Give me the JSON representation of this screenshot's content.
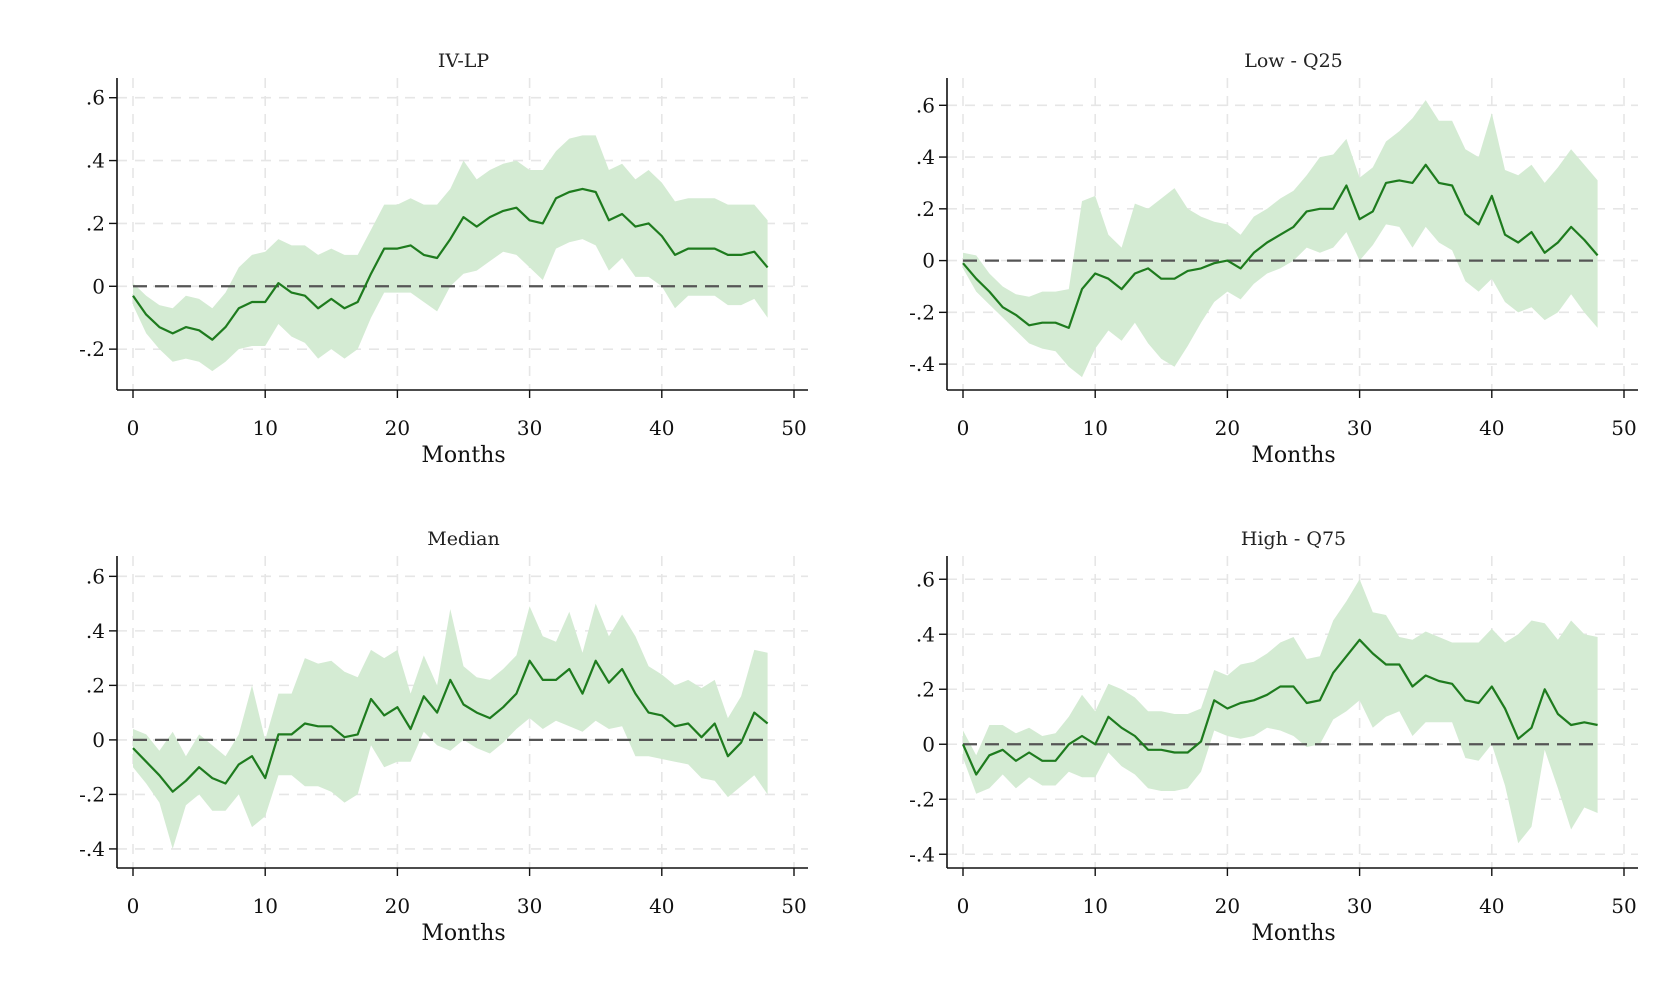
{
  "chart_data": [
    {
      "type": "line",
      "title": "IV-LP",
      "xlabel": "Months",
      "ylabel": "",
      "xlim": [
        0,
        50
      ],
      "ylim": [
        -0.33,
        0.65
      ],
      "xticks": [
        0,
        10,
        20,
        30,
        40,
        50
      ],
      "xtick_labels": [
        "0",
        "10",
        "20",
        "30",
        "40",
        "50"
      ],
      "yticks": [
        -0.2,
        0,
        0.2,
        0.4,
        0.6
      ],
      "ytick_labels": [
        "-.2",
        "0",
        ".2",
        ".4",
        ".6"
      ],
      "grid": true,
      "legend": "none",
      "reference_line": 0,
      "colors": {
        "line": "#1e7b1e",
        "band": "#d4ebd3",
        "reference": "#555555",
        "grid": "#e6e6e6"
      },
      "x": [
        0,
        1,
        2,
        3,
        4,
        5,
        6,
        7,
        8,
        9,
        10,
        11,
        12,
        13,
        14,
        15,
        16,
        17,
        18,
        19,
        20,
        21,
        22,
        23,
        24,
        25,
        26,
        27,
        28,
        29,
        30,
        31,
        32,
        33,
        34,
        35,
        36,
        37,
        38,
        39,
        40,
        41,
        42,
        43,
        44,
        45,
        46,
        47,
        48
      ],
      "series": [
        {
          "values": [
            -0.03,
            -0.09,
            -0.13,
            -0.15,
            -0.13,
            -0.14,
            -0.17,
            -0.13,
            -0.07,
            -0.05,
            -0.05,
            0.01,
            -0.02,
            -0.03,
            -0.07,
            -0.04,
            -0.07,
            -0.05,
            0.04,
            0.12,
            0.12,
            0.13,
            0.1,
            0.09,
            0.15,
            0.22,
            0.19,
            0.22,
            0.24,
            0.25,
            0.21,
            0.2,
            0.28,
            0.3,
            0.31,
            0.3,
            0.21,
            0.23,
            0.19,
            0.2,
            0.16,
            0.1,
            0.12,
            0.12,
            0.12,
            0.1,
            0.1,
            0.11,
            0.06
          ],
          "lower": [
            -0.06,
            -0.15,
            -0.2,
            -0.24,
            -0.23,
            -0.24,
            -0.27,
            -0.24,
            -0.2,
            -0.19,
            -0.19,
            -0.12,
            -0.16,
            -0.18,
            -0.23,
            -0.2,
            -0.23,
            -0.2,
            -0.1,
            -0.02,
            -0.02,
            -0.02,
            -0.05,
            -0.08,
            0.0,
            0.04,
            0.05,
            0.08,
            0.11,
            0.1,
            0.06,
            0.02,
            0.12,
            0.14,
            0.15,
            0.13,
            0.05,
            0.09,
            0.03,
            0.03,
            0.0,
            -0.07,
            -0.03,
            -0.03,
            -0.03,
            -0.06,
            -0.06,
            -0.04,
            -0.1
          ],
          "upper": [
            0.01,
            -0.03,
            -0.06,
            -0.07,
            -0.03,
            -0.04,
            -0.07,
            -0.02,
            0.06,
            0.1,
            0.11,
            0.15,
            0.13,
            0.13,
            0.1,
            0.12,
            0.1,
            0.1,
            0.18,
            0.26,
            0.26,
            0.28,
            0.26,
            0.26,
            0.31,
            0.4,
            0.34,
            0.37,
            0.39,
            0.4,
            0.37,
            0.37,
            0.43,
            0.47,
            0.48,
            0.48,
            0.37,
            0.39,
            0.34,
            0.37,
            0.33,
            0.27,
            0.28,
            0.28,
            0.28,
            0.26,
            0.26,
            0.26,
            0.21
          ]
        }
      ]
    },
    {
      "type": "line",
      "title": "Low - Q25",
      "xlabel": "Months",
      "ylabel": "",
      "xlim": [
        0,
        50
      ],
      "ylim": [
        -0.5,
        0.69
      ],
      "xticks": [
        0,
        10,
        20,
        30,
        40,
        50
      ],
      "xtick_labels": [
        "0",
        "10",
        "20",
        "30",
        "40",
        "50"
      ],
      "yticks": [
        -0.4,
        -0.2,
        0,
        0.2,
        0.4,
        0.6
      ],
      "ytick_labels": [
        "-.4",
        "-.2",
        "0",
        ".2",
        ".4",
        ".6"
      ],
      "grid": true,
      "legend": "none",
      "reference_line": 0,
      "colors": {
        "line": "#1e7b1e",
        "band": "#d4ebd3",
        "reference": "#555555",
        "grid": "#e6e6e6"
      },
      "x": [
        0,
        1,
        2,
        3,
        4,
        5,
        6,
        7,
        8,
        9,
        10,
        11,
        12,
        13,
        14,
        15,
        16,
        17,
        18,
        19,
        20,
        21,
        22,
        23,
        24,
        25,
        26,
        27,
        28,
        29,
        30,
        31,
        32,
        33,
        34,
        35,
        36,
        37,
        38,
        39,
        40,
        41,
        42,
        43,
        44,
        45,
        46,
        47,
        48
      ],
      "series": [
        {
          "values": [
            -0.01,
            -0.07,
            -0.12,
            -0.18,
            -0.21,
            -0.25,
            -0.24,
            -0.24,
            -0.26,
            -0.11,
            -0.05,
            -0.07,
            -0.11,
            -0.05,
            -0.03,
            -0.07,
            -0.07,
            -0.04,
            -0.03,
            -0.01,
            0.0,
            -0.03,
            0.03,
            0.07,
            0.1,
            0.13,
            0.19,
            0.2,
            0.2,
            0.29,
            0.16,
            0.19,
            0.3,
            0.31,
            0.3,
            0.37,
            0.3,
            0.29,
            0.18,
            0.14,
            0.25,
            0.1,
            0.07,
            0.11,
            0.03,
            0.07,
            0.13,
            0.08,
            0.02
          ],
          "lower": [
            -0.03,
            -0.12,
            -0.17,
            -0.22,
            -0.27,
            -0.32,
            -0.34,
            -0.35,
            -0.41,
            -0.45,
            -0.34,
            -0.27,
            -0.31,
            -0.24,
            -0.32,
            -0.38,
            -0.41,
            -0.33,
            -0.24,
            -0.16,
            -0.12,
            -0.15,
            -0.09,
            -0.05,
            -0.03,
            0.0,
            0.05,
            0.03,
            0.05,
            0.11,
            0.0,
            0.06,
            0.14,
            0.13,
            0.05,
            0.13,
            0.07,
            0.04,
            -0.08,
            -0.12,
            -0.07,
            -0.16,
            -0.2,
            -0.18,
            -0.23,
            -0.2,
            -0.13,
            -0.2,
            -0.26
          ],
          "upper": [
            0.03,
            0.02,
            -0.05,
            -0.1,
            -0.13,
            -0.14,
            -0.12,
            -0.12,
            -0.11,
            0.23,
            0.25,
            0.1,
            0.05,
            0.22,
            0.2,
            0.24,
            0.28,
            0.2,
            0.17,
            0.15,
            0.14,
            0.1,
            0.17,
            0.2,
            0.24,
            0.27,
            0.33,
            0.4,
            0.41,
            0.47,
            0.32,
            0.36,
            0.46,
            0.5,
            0.55,
            0.62,
            0.54,
            0.54,
            0.43,
            0.4,
            0.57,
            0.35,
            0.33,
            0.37,
            0.3,
            0.36,
            0.43,
            0.37,
            0.31
          ]
        }
      ]
    },
    {
      "type": "line",
      "title": "Median",
      "xlabel": "Months",
      "ylabel": "",
      "xlim": [
        0,
        50
      ],
      "ylim": [
        -0.47,
        0.66
      ],
      "xticks": [
        0,
        10,
        20,
        30,
        40,
        50
      ],
      "xtick_labels": [
        "0",
        "10",
        "20",
        "30",
        "40",
        "50"
      ],
      "yticks": [
        -0.4,
        -0.2,
        0,
        0.2,
        0.4,
        0.6
      ],
      "ytick_labels": [
        "-.4",
        "-.2",
        "0",
        ".2",
        ".4",
        ".6"
      ],
      "grid": true,
      "legend": "none",
      "reference_line": 0,
      "colors": {
        "line": "#1e7b1e",
        "band": "#d4ebd3",
        "reference": "#555555",
        "grid": "#e6e6e6"
      },
      "x": [
        0,
        1,
        2,
        3,
        4,
        5,
        6,
        7,
        8,
        9,
        10,
        11,
        12,
        13,
        14,
        15,
        16,
        17,
        18,
        19,
        20,
        21,
        22,
        23,
        24,
        25,
        26,
        27,
        28,
        29,
        30,
        31,
        32,
        33,
        34,
        35,
        36,
        37,
        38,
        39,
        40,
        41,
        42,
        43,
        44,
        45,
        46,
        47,
        48
      ],
      "series": [
        {
          "values": [
            -0.03,
            -0.08,
            -0.13,
            -0.19,
            -0.15,
            -0.1,
            -0.14,
            -0.16,
            -0.09,
            -0.06,
            -0.14,
            0.02,
            0.02,
            0.06,
            0.05,
            0.05,
            0.01,
            0.02,
            0.15,
            0.09,
            0.12,
            0.04,
            0.16,
            0.1,
            0.22,
            0.13,
            0.1,
            0.08,
            0.12,
            0.17,
            0.29,
            0.22,
            0.22,
            0.26,
            0.17,
            0.29,
            0.21,
            0.26,
            0.17,
            0.1,
            0.09,
            0.05,
            0.06,
            0.01,
            0.06,
            -0.06,
            -0.01,
            0.1,
            0.06
          ],
          "lower": [
            -0.1,
            -0.16,
            -0.23,
            -0.4,
            -0.24,
            -0.2,
            -0.26,
            -0.26,
            -0.2,
            -0.32,
            -0.28,
            -0.13,
            -0.13,
            -0.17,
            -0.17,
            -0.19,
            -0.23,
            -0.2,
            -0.02,
            -0.1,
            -0.08,
            -0.08,
            0.03,
            -0.02,
            -0.04,
            0.0,
            -0.03,
            -0.05,
            -0.01,
            0.04,
            0.08,
            0.04,
            0.07,
            0.05,
            0.03,
            0.07,
            0.04,
            0.05,
            -0.06,
            -0.06,
            -0.07,
            -0.08,
            -0.09,
            -0.14,
            -0.15,
            -0.21,
            -0.17,
            -0.13,
            -0.2
          ],
          "upper": [
            0.04,
            0.02,
            -0.04,
            0.03,
            -0.06,
            0.02,
            -0.02,
            -0.06,
            0.02,
            0.2,
            0.0,
            0.17,
            0.17,
            0.3,
            0.28,
            0.29,
            0.25,
            0.23,
            0.33,
            0.3,
            0.33,
            0.17,
            0.31,
            0.2,
            0.48,
            0.27,
            0.23,
            0.22,
            0.26,
            0.31,
            0.49,
            0.38,
            0.36,
            0.47,
            0.32,
            0.5,
            0.38,
            0.46,
            0.38,
            0.27,
            0.24,
            0.2,
            0.22,
            0.19,
            0.22,
            0.08,
            0.16,
            0.33,
            0.32
          ]
        }
      ]
    },
    {
      "type": "line",
      "title": "High - Q75",
      "xlabel": "Months",
      "ylabel": "",
      "xlim": [
        0,
        50
      ],
      "ylim": [
        -0.45,
        0.67
      ],
      "xticks": [
        0,
        10,
        20,
        30,
        40,
        50
      ],
      "xtick_labels": [
        "0",
        "10",
        "20",
        "30",
        "40",
        "50"
      ],
      "yticks": [
        -0.4,
        -0.2,
        0,
        0.2,
        0.4,
        0.6
      ],
      "ytick_labels": [
        "-.4",
        "-.2",
        "0",
        ".2",
        ".4",
        ".6"
      ],
      "grid": true,
      "legend": "none",
      "reference_line": 0,
      "colors": {
        "line": "#1e7b1e",
        "band": "#d4ebd3",
        "reference": "#555555",
        "grid": "#e6e6e6"
      },
      "x": [
        0,
        1,
        2,
        3,
        4,
        5,
        6,
        7,
        8,
        9,
        10,
        11,
        12,
        13,
        14,
        15,
        16,
        17,
        18,
        19,
        20,
        21,
        22,
        23,
        24,
        25,
        26,
        27,
        28,
        29,
        30,
        31,
        32,
        33,
        34,
        35,
        36,
        37,
        38,
        39,
        40,
        41,
        42,
        43,
        44,
        45,
        46,
        47,
        48
      ],
      "series": [
        {
          "values": [
            0.0,
            -0.11,
            -0.04,
            -0.02,
            -0.06,
            -0.03,
            -0.06,
            -0.06,
            0.0,
            0.03,
            0.0,
            0.1,
            0.06,
            0.03,
            -0.02,
            -0.02,
            -0.03,
            -0.03,
            0.01,
            0.16,
            0.13,
            0.15,
            0.16,
            0.18,
            0.21,
            0.21,
            0.15,
            0.16,
            0.26,
            0.32,
            0.38,
            0.33,
            0.29,
            0.29,
            0.21,
            0.25,
            0.23,
            0.22,
            0.16,
            0.15,
            0.21,
            0.13,
            0.02,
            0.06,
            0.2,
            0.11,
            0.07,
            0.08,
            0.07
          ],
          "lower": [
            -0.05,
            -0.18,
            -0.16,
            -0.11,
            -0.16,
            -0.12,
            -0.15,
            -0.15,
            -0.1,
            -0.12,
            -0.12,
            -0.03,
            -0.08,
            -0.11,
            -0.16,
            -0.17,
            -0.17,
            -0.16,
            -0.1,
            0.05,
            0.03,
            0.02,
            0.03,
            0.06,
            0.05,
            0.03,
            -0.01,
            0.0,
            0.09,
            0.12,
            0.16,
            0.06,
            0.1,
            0.12,
            0.03,
            0.08,
            0.08,
            0.08,
            -0.05,
            -0.06,
            0.0,
            -0.15,
            -0.36,
            -0.3,
            -0.02,
            -0.16,
            -0.31,
            -0.23,
            -0.25
          ],
          "upper": [
            0.05,
            -0.04,
            0.07,
            0.07,
            0.04,
            0.06,
            0.03,
            0.04,
            0.1,
            0.18,
            0.12,
            0.22,
            0.2,
            0.17,
            0.12,
            0.12,
            0.11,
            0.11,
            0.13,
            0.27,
            0.25,
            0.29,
            0.3,
            0.33,
            0.37,
            0.39,
            0.31,
            0.32,
            0.45,
            0.52,
            0.6,
            0.48,
            0.47,
            0.39,
            0.38,
            0.41,
            0.39,
            0.37,
            0.37,
            0.37,
            0.42,
            0.37,
            0.4,
            0.45,
            0.44,
            0.38,
            0.45,
            0.4,
            0.39
          ]
        }
      ]
    }
  ]
}
